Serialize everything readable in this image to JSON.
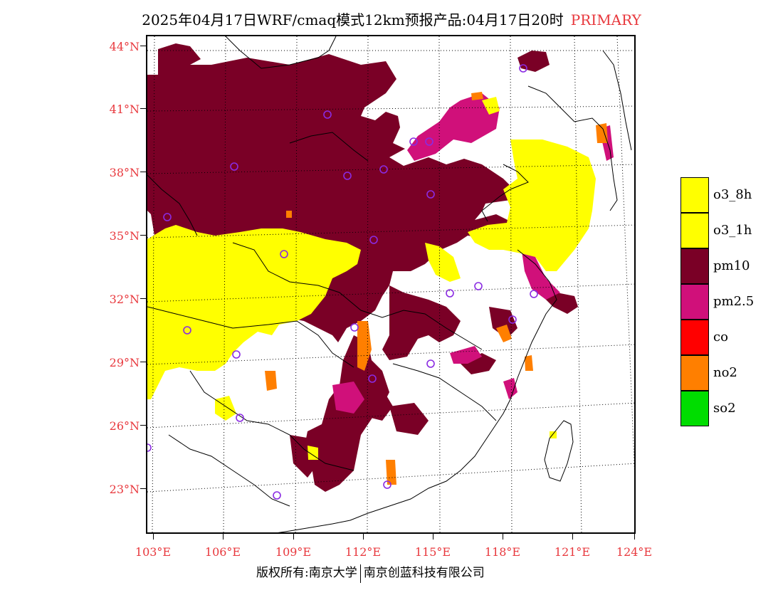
{
  "title": {
    "main": "2025年04月17日WRF/cmaq模式12km预报产品:04月17日20时",
    "tag": "PRIMARY"
  },
  "lat_labels": [
    "44°N",
    "41°N",
    "38°N",
    "35°N",
    "32°N",
    "29°N",
    "26°N",
    "23°N"
  ],
  "lon_labels": [
    "103°E",
    "106°E",
    "109°E",
    "112°E",
    "115°E",
    "118°E",
    "121°E",
    "124°E"
  ],
  "legend": [
    {
      "label": "o3_8h",
      "color": "#ffff00"
    },
    {
      "label": "o3_1h",
      "color": "#ffff00"
    },
    {
      "label": "pm10",
      "color": "#7a0026"
    },
    {
      "label": "pm2.5",
      "color": "#d0107a"
    },
    {
      "label": "co",
      "color": "#ff0000"
    },
    {
      "label": "no2",
      "color": "#ff7f00"
    },
    {
      "label": "so2",
      "color": "#00dd00"
    }
  ],
  "footer": {
    "left": "版权所有:南京大学",
    "right": "南京创蓝科技有限公司"
  }
}
